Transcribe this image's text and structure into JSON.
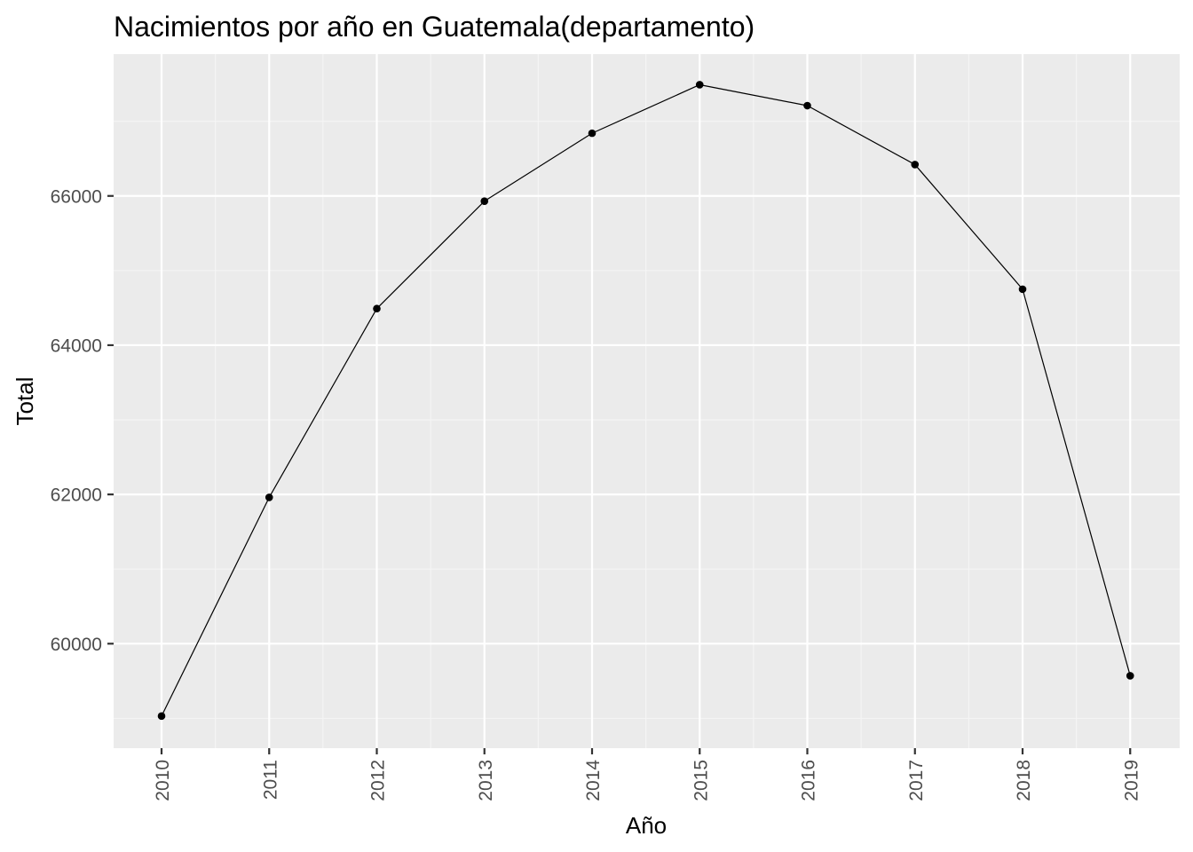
{
  "chart_data": {
    "type": "line",
    "title": "Nacimientos por año en Guatemala(departamento)",
    "xlabel": "Año",
    "ylabel": "Total",
    "categories": [
      "2010",
      "2011",
      "2012",
      "2013",
      "2014",
      "2015",
      "2016",
      "2017",
      "2018",
      "2019"
    ],
    "series": [
      {
        "values": [
          59030,
          61960,
          64490,
          65930,
          66840,
          67490,
          67210,
          66420,
          64750,
          59570
        ],
        "markers": true
      }
    ],
    "y_ticks": [
      "60000",
      "62000",
      "64000",
      "66000"
    ],
    "y_tick_values": [
      60000,
      62000,
      64000,
      66000
    ],
    "ylim": [
      58600,
      67900
    ],
    "grid": true,
    "x_tick_rotation": "vertical",
    "legend": "none",
    "colors": {
      "panel_background": "#EBEBEB",
      "grid_major": "#FFFFFF",
      "grid_minor": "#F5F5F5",
      "line": "#000000",
      "point": "#000000",
      "tick_text": "#4D4D4D",
      "text": "#000000"
    }
  }
}
